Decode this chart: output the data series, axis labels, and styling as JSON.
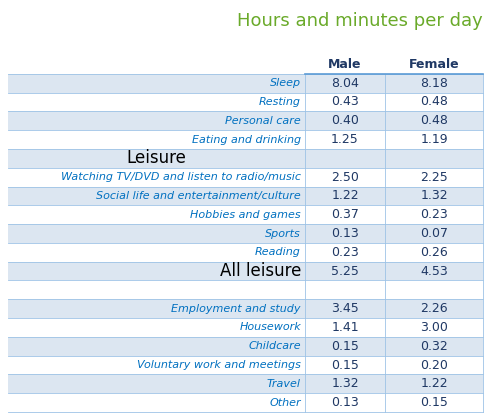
{
  "title": "Hours and minutes per day",
  "title_color": "#6aaa2a",
  "col_headers": [
    "Male",
    "Female"
  ],
  "col_header_color": "#1f3864",
  "rows": [
    {
      "label": "Sleep",
      "male": "8.04",
      "female": "8.18",
      "type": "data",
      "shade": true
    },
    {
      "label": "Resting",
      "male": "0.43",
      "female": "0.48",
      "type": "data",
      "shade": false
    },
    {
      "label": "Personal care",
      "male": "0.40",
      "female": "0.48",
      "type": "data",
      "shade": true
    },
    {
      "label": "Eating and drinking",
      "male": "1.25",
      "female": "1.19",
      "type": "data",
      "shade": false
    },
    {
      "label": "Leisure",
      "male": "",
      "female": "",
      "type": "section",
      "shade": true
    },
    {
      "label": "Watching TV/DVD and listen to radio/music",
      "male": "2.50",
      "female": "2.25",
      "type": "data",
      "shade": false
    },
    {
      "label": "Social life and entertainment/culture",
      "male": "1.22",
      "female": "1.32",
      "type": "data",
      "shade": true
    },
    {
      "label": "Hobbies and games",
      "male": "0.37",
      "female": "0.23",
      "type": "data",
      "shade": false
    },
    {
      "label": "Sports",
      "male": "0.13",
      "female": "0.07",
      "type": "data",
      "shade": true
    },
    {
      "label": "Reading",
      "male": "0.23",
      "female": "0.26",
      "type": "data",
      "shade": false
    },
    {
      "label": "All leisure",
      "male": "5.25",
      "female": "4.53",
      "type": "total",
      "shade": true
    },
    {
      "label": "",
      "male": "",
      "female": "",
      "type": "blank",
      "shade": false
    },
    {
      "label": "Employment and study",
      "male": "3.45",
      "female": "2.26",
      "type": "data",
      "shade": true
    },
    {
      "label": "Housework",
      "male": "1.41",
      "female": "3.00",
      "type": "data",
      "shade": false
    },
    {
      "label": "Childcare",
      "male": "0.15",
      "female": "0.32",
      "type": "data",
      "shade": true
    },
    {
      "label": "Voluntary work and meetings",
      "male": "0.15",
      "female": "0.20",
      "type": "data",
      "shade": false
    },
    {
      "label": "Travel",
      "male": "1.32",
      "female": "1.22",
      "type": "data",
      "shade": true
    },
    {
      "label": "Other",
      "male": "0.13",
      "female": "0.15",
      "type": "data",
      "shade": false
    }
  ],
  "shade_color": "#dce6f1",
  "white_color": "#ffffff",
  "data_text_color": "#1f3864",
  "label_italic_color": "#0070c0",
  "section_total_color": "#000000",
  "header_line_color": "#5b9bd5",
  "cell_line_color": "#9dc3e6",
  "title_fontsize": 13,
  "header_fontsize": 9,
  "data_fontsize": 9,
  "label_fontsize": 8,
  "section_fontsize": 12,
  "total_fontsize": 12
}
